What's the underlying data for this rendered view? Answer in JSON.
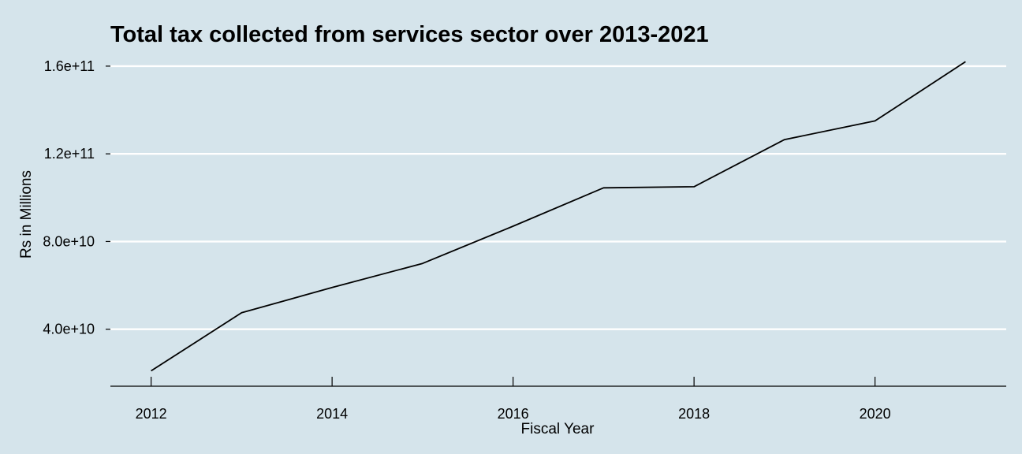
{
  "chart_data": {
    "type": "line",
    "title": "Total tax collected from services sector over 2013-2021",
    "xlabel": "Fiscal Year",
    "ylabel": "Rs in Millions",
    "x": [
      2012,
      2013,
      2014,
      2015,
      2016,
      2017,
      2018,
      2019,
      2020,
      2021
    ],
    "series": [
      {
        "values": [
          21000000000,
          47500000000,
          59000000000,
          70000000000,
          87000000000,
          104500000000,
          105000000000,
          126500000000,
          135000000000,
          162000000000
        ]
      }
    ],
    "xticks": [
      2012,
      2014,
      2016,
      2018,
      2020
    ],
    "xtick_labels": [
      "2012",
      "2014",
      "2016",
      "2018",
      "2020"
    ],
    "yticks": [
      40000000000,
      80000000000,
      120000000000,
      160000000000
    ],
    "ytick_labels": [
      "4.0e+10",
      "8.0e+10",
      "1.2e+11",
      "1.6e+11"
    ],
    "xlim": [
      2011.55,
      2021.45
    ],
    "ylim": [
      14000000000,
      165000000000
    ],
    "grid": "horizontal major lines",
    "legend": "none",
    "colors": {
      "background": "#d5e4eb",
      "grid": "#ffffff",
      "line": "#000000",
      "axis": "#000000"
    }
  }
}
